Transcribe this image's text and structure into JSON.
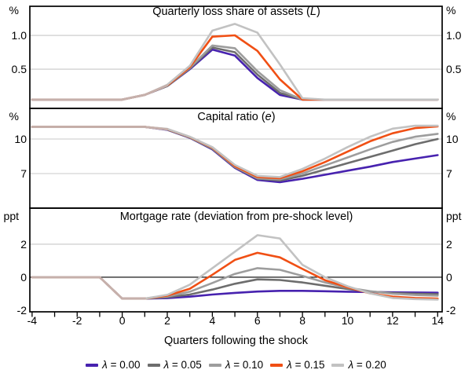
{
  "figure": {
    "x_axis": {
      "title": "Quarters following the shock",
      "range": [
        -4.1,
        14.2
      ],
      "labeled_ticks": [
        -4,
        -2,
        0,
        2,
        4,
        6,
        8,
        10,
        12,
        14
      ],
      "minor_tick_step": 1
    },
    "legend": [
      {
        "label": "λ = 0.00",
        "color": "#4722AF"
      },
      {
        "label": "λ = 0.05",
        "color": "#6D6D6D"
      },
      {
        "label": "λ = 0.10",
        "color": "#9D9D9D"
      },
      {
        "label": "λ = 0.15",
        "color": "#F04F14"
      },
      {
        "label": "λ = 0.20",
        "color": "#C2C2C2"
      }
    ],
    "colors": {
      "gridline": "#C8C8C8",
      "frame": "#000000",
      "zero_line": "#000000",
      "overlap_line": "#C6B0AB"
    }
  },
  "chart_data": [
    {
      "type": "line",
      "title_parts": [
        {
          "t": "Quarterly loss share of assets (",
          "i": false
        },
        {
          "t": "L",
          "i": true
        },
        {
          "t": ")",
          "i": false
        }
      ],
      "unit": "%",
      "ylim": [
        -0.08,
        1.43
      ],
      "yticks": [
        {
          "value": 1.0,
          "label": "1.0",
          "line": "grid"
        },
        {
          "value": 0.5,
          "label": "0.5",
          "line": "grid"
        }
      ],
      "x": [
        -4,
        -3,
        -2,
        -1,
        0,
        1,
        2,
        3,
        4,
        5,
        6,
        7,
        8,
        9,
        10,
        11,
        12,
        13,
        14
      ],
      "series": [
        {
          "name": "λ = 0.00",
          "color": "#4722AF",
          "values": [
            0.05,
            0.05,
            0.05,
            0.05,
            0.05,
            0.12,
            0.25,
            0.5,
            0.79,
            0.7,
            0.37,
            0.12,
            0.05,
            0.05,
            0.05,
            0.05,
            0.05,
            0.05,
            0.05
          ]
        },
        {
          "name": "λ = 0.05",
          "color": "#6D6D6D",
          "values": [
            0.05,
            0.05,
            0.05,
            0.05,
            0.05,
            0.12,
            0.25,
            0.51,
            0.82,
            0.75,
            0.42,
            0.15,
            0.05,
            0.05,
            0.05,
            0.05,
            0.05,
            0.05,
            0.05
          ]
        },
        {
          "name": "λ = 0.10",
          "color": "#9D9D9D",
          "values": [
            0.05,
            0.05,
            0.05,
            0.05,
            0.05,
            0.12,
            0.26,
            0.52,
            0.85,
            0.81,
            0.47,
            0.19,
            0.05,
            0.05,
            0.05,
            0.05,
            0.05,
            0.05,
            0.05
          ]
        },
        {
          "name": "λ = 0.15",
          "color": "#F04F14",
          "values": [
            0.05,
            0.05,
            0.05,
            0.05,
            0.05,
            0.12,
            0.26,
            0.53,
            0.98,
            1.0,
            0.77,
            0.35,
            0.05,
            0.05,
            0.05,
            0.05,
            0.05,
            0.05,
            0.05
          ]
        },
        {
          "name": "λ = 0.20",
          "color": "#C2C2C2",
          "values": [
            0.05,
            0.05,
            0.05,
            0.05,
            0.05,
            0.12,
            0.27,
            0.55,
            1.07,
            1.17,
            1.04,
            0.57,
            0.07,
            0.05,
            0.05,
            0.05,
            0.05,
            0.05,
            0.05
          ]
        }
      ],
      "overlap": {
        "x": [
          -4,
          -3,
          -2,
          -1,
          0,
          1,
          2
        ],
        "values": [
          0.05,
          0.05,
          0.05,
          0.05,
          0.05,
          0.12,
          0.26
        ]
      }
    },
    {
      "type": "line",
      "title_parts": [
        {
          "t": "Capital ratio (",
          "i": false
        },
        {
          "t": "e",
          "i": true
        },
        {
          "t": ")",
          "i": false
        }
      ],
      "unit": "%",
      "ylim": [
        4.0,
        12.66
      ],
      "yticks": [
        {
          "value": 10,
          "label": "10",
          "line": "grid"
        },
        {
          "value": 7,
          "label": "7",
          "line": "grid"
        }
      ],
      "x": [
        -4,
        -3,
        -2,
        -1,
        0,
        1,
        2,
        3,
        4,
        5,
        6,
        7,
        8,
        9,
        10,
        11,
        12,
        13,
        14
      ],
      "series": [
        {
          "name": "λ = 0.00",
          "color": "#4722AF",
          "values": [
            11.05,
            11.05,
            11.05,
            11.05,
            11.05,
            11.05,
            10.8,
            10.1,
            9.1,
            7.5,
            6.45,
            6.25,
            6.55,
            6.9,
            7.25,
            7.6,
            8.0,
            8.3,
            8.6
          ]
        },
        {
          "name": "λ = 0.05",
          "color": "#6D6D6D",
          "values": [
            11.05,
            11.05,
            11.05,
            11.05,
            11.05,
            11.05,
            10.82,
            10.12,
            9.15,
            7.55,
            6.55,
            6.4,
            6.8,
            7.35,
            7.9,
            8.45,
            9.0,
            9.55,
            10.0
          ]
        },
        {
          "name": "λ = 0.10",
          "color": "#9D9D9D",
          "values": [
            11.05,
            11.05,
            11.05,
            11.05,
            11.05,
            11.05,
            10.84,
            10.15,
            9.2,
            7.6,
            6.6,
            6.5,
            7.0,
            7.7,
            8.4,
            9.1,
            9.75,
            10.2,
            10.45
          ]
        },
        {
          "name": "λ = 0.15",
          "color": "#F04F14",
          "values": [
            11.05,
            11.05,
            11.05,
            11.05,
            11.05,
            11.05,
            10.86,
            10.18,
            9.25,
            7.65,
            6.7,
            6.6,
            7.2,
            8.0,
            8.9,
            9.8,
            10.5,
            10.95,
            11.1
          ]
        },
        {
          "name": "λ = 0.20",
          "color": "#C2C2C2",
          "values": [
            11.05,
            11.05,
            11.05,
            11.05,
            11.05,
            11.05,
            10.88,
            10.2,
            9.3,
            7.75,
            6.8,
            6.7,
            7.4,
            8.3,
            9.3,
            10.2,
            10.9,
            11.15,
            11.15
          ]
        }
      ],
      "overlap": {
        "x": [
          -4,
          -3,
          -2,
          -1,
          0,
          1,
          2
        ],
        "values": [
          11.05,
          11.05,
          11.05,
          11.05,
          11.05,
          11.05,
          10.84
        ]
      }
    },
    {
      "type": "line",
      "title_parts": [
        {
          "t": "Mortgage rate (deviation from pre-shock level)",
          "i": false
        }
      ],
      "unit": "ppt",
      "ylim": [
        -2.1,
        4.19
      ],
      "yticks": [
        {
          "value": 2,
          "label": "2",
          "line": "grid"
        },
        {
          "value": 0,
          "label": "0",
          "line": "zero"
        },
        {
          "value": -2,
          "label": "-2",
          "line": "none"
        }
      ],
      "x": [
        -4,
        -3,
        -2,
        -1,
        0,
        1,
        2,
        3,
        4,
        5,
        6,
        7,
        8,
        9,
        10,
        11,
        12,
        13,
        14
      ],
      "series": [
        {
          "name": "λ = 0.00",
          "color": "#4722AF",
          "values": [
            0,
            0,
            0,
            0,
            -1.3,
            -1.3,
            -1.27,
            -1.18,
            -1.05,
            -0.95,
            -0.87,
            -0.83,
            -0.83,
            -0.85,
            -0.88,
            -0.9,
            -0.92,
            -0.93,
            -0.94
          ]
        },
        {
          "name": "λ = 0.05",
          "color": "#6D6D6D",
          "values": [
            0,
            0,
            0,
            0,
            -1.3,
            -1.3,
            -1.22,
            -1.05,
            -0.75,
            -0.4,
            -0.13,
            -0.17,
            -0.32,
            -0.52,
            -0.72,
            -0.87,
            -0.96,
            -1.0,
            -1.03
          ]
        },
        {
          "name": "λ = 0.10",
          "color": "#9D9D9D",
          "values": [
            0,
            0,
            0,
            0,
            -1.3,
            -1.3,
            -1.17,
            -0.88,
            -0.35,
            0.2,
            0.55,
            0.45,
            0.08,
            -0.32,
            -0.63,
            -0.85,
            -1.0,
            -1.08,
            -1.12
          ]
        },
        {
          "name": "λ = 0.15",
          "color": "#F04F14",
          "values": [
            0,
            0,
            0,
            0,
            -1.3,
            -1.3,
            -1.12,
            -0.7,
            0.15,
            1.05,
            1.48,
            1.2,
            0.5,
            -0.18,
            -0.62,
            -0.98,
            -1.18,
            -1.26,
            -1.3
          ]
        },
        {
          "name": "λ = 0.20",
          "color": "#C2C2C2",
          "values": [
            0,
            0,
            0,
            0,
            -1.3,
            -1.3,
            -1.07,
            -0.45,
            0.55,
            1.55,
            2.55,
            2.35,
            0.75,
            0.0,
            -0.55,
            -0.98,
            -1.26,
            -1.33,
            -1.36
          ]
        }
      ],
      "overlap": {
        "x": [
          -4,
          -3,
          -2,
          -1,
          0,
          1
        ],
        "values": [
          0,
          0,
          0,
          0,
          -1.3,
          -1.3
        ]
      }
    }
  ]
}
